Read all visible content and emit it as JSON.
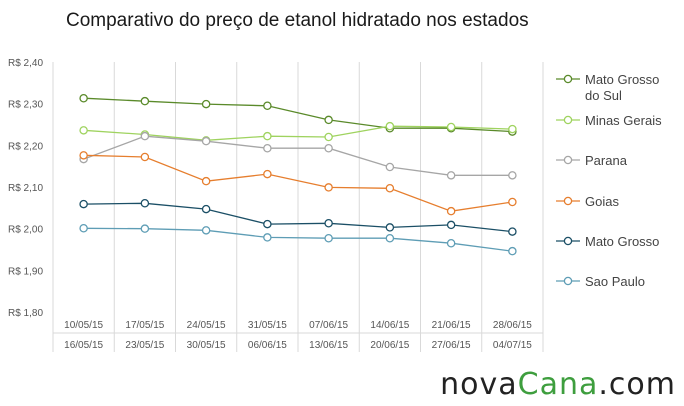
{
  "brand": {
    "parts": [
      {
        "text": "nova",
        "color": "#222222"
      },
      {
        "text": "Cana",
        "color": "#3e9e3e"
      },
      {
        "text": ".com",
        "color": "#222222"
      }
    ]
  },
  "chart_data": {
    "type": "line",
    "title": "Comparativo do preço de etanol hidratado nos estados",
    "xlabel": "",
    "ylabel": "",
    "ylim": [
      1.8,
      2.4
    ],
    "ytick_step": 0.1,
    "ytick_labels": [
      "R$ 1,80",
      "R$ 1,90",
      "R$ 2,00",
      "R$ 2,10",
      "R$ 2,20",
      "R$ 2,30",
      "R$ 2,40"
    ],
    "grid": "vertical",
    "legend_position": "right",
    "categories": [
      [
        "10/05/15",
        "16/05/15"
      ],
      [
        "17/05/15",
        "23/05/15"
      ],
      [
        "24/05/15",
        "30/05/15"
      ],
      [
        "31/05/15",
        "06/06/15"
      ],
      [
        "07/06/15",
        "13/06/15"
      ],
      [
        "14/06/15",
        "20/06/15"
      ],
      [
        "21/06/15",
        "27/06/15"
      ],
      [
        "28/06/15",
        "04/07/15"
      ]
    ],
    "series": [
      {
        "name": "Mato Grosso do Sul",
        "legend_lines": [
          "Mato Grosso",
          "do Sul"
        ],
        "color": "#5a8a2a",
        "values": [
          2.313,
          2.306,
          2.299,
          2.295,
          2.261,
          2.241,
          2.241,
          2.233
        ]
      },
      {
        "name": "Minas Gerais",
        "legend_lines": [
          "Minas Gerais"
        ],
        "color": "#9fd35f",
        "values": [
          2.236,
          2.226,
          2.212,
          2.222,
          2.22,
          2.246,
          2.244,
          2.239
        ]
      },
      {
        "name": "Parana",
        "legend_lines": [
          "Parana"
        ],
        "color": "#a6a6a6",
        "values": [
          2.167,
          2.222,
          2.21,
          2.193,
          2.193,
          2.148,
          2.128,
          2.128
        ]
      },
      {
        "name": "Goias",
        "legend_lines": [
          "Goias"
        ],
        "color": "#e67e2e",
        "values": [
          2.176,
          2.172,
          2.114,
          2.131,
          2.099,
          2.097,
          2.042,
          2.064
        ]
      },
      {
        "name": "Mato Grosso",
        "legend_lines": [
          "Mato Grosso"
        ],
        "color": "#1b4f66",
        "values": [
          2.059,
          2.061,
          2.047,
          2.011,
          2.013,
          2.003,
          2.009,
          1.993
        ]
      },
      {
        "name": "Sao Paulo",
        "legend_lines": [
          "Sao Paulo"
        ],
        "color": "#5e9db5",
        "values": [
          2.001,
          2.0,
          1.996,
          1.979,
          1.977,
          1.977,
          1.965,
          1.946
        ]
      }
    ]
  }
}
